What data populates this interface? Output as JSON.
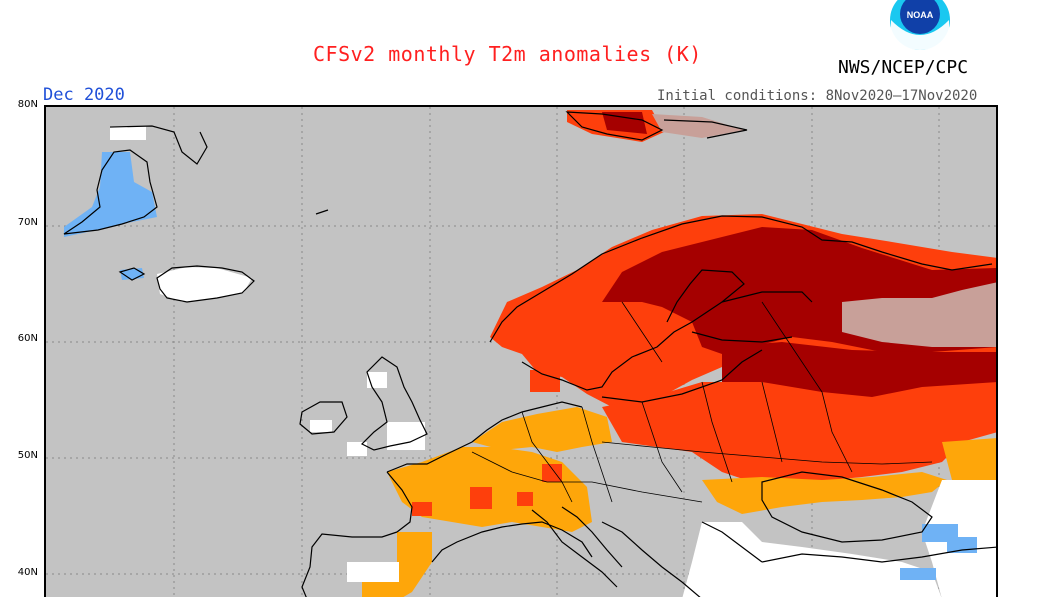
{
  "header": {
    "title": "CFSv2 monthly T2m anomalies (K)",
    "agency": "NWS/NCEP/CPC",
    "month": "Dec 2020",
    "initial_conditions": "Initial conditions: 8Nov2020–17Nov2020",
    "logo_text": "NOAA"
  },
  "map": {
    "latitude_labels": [
      "80N",
      "70N",
      "60N",
      "50N",
      "40N"
    ],
    "colors": {
      "background": "#c3c3c3",
      "warm_light": "#fea60a",
      "warm_mid": "#fe3f0c",
      "warm_dark": "#a50000",
      "warm_muted": "#c8a099",
      "neutral": "#ffffff",
      "cold_light": "#6fb2f5",
      "coast": "#000000"
    }
  }
}
